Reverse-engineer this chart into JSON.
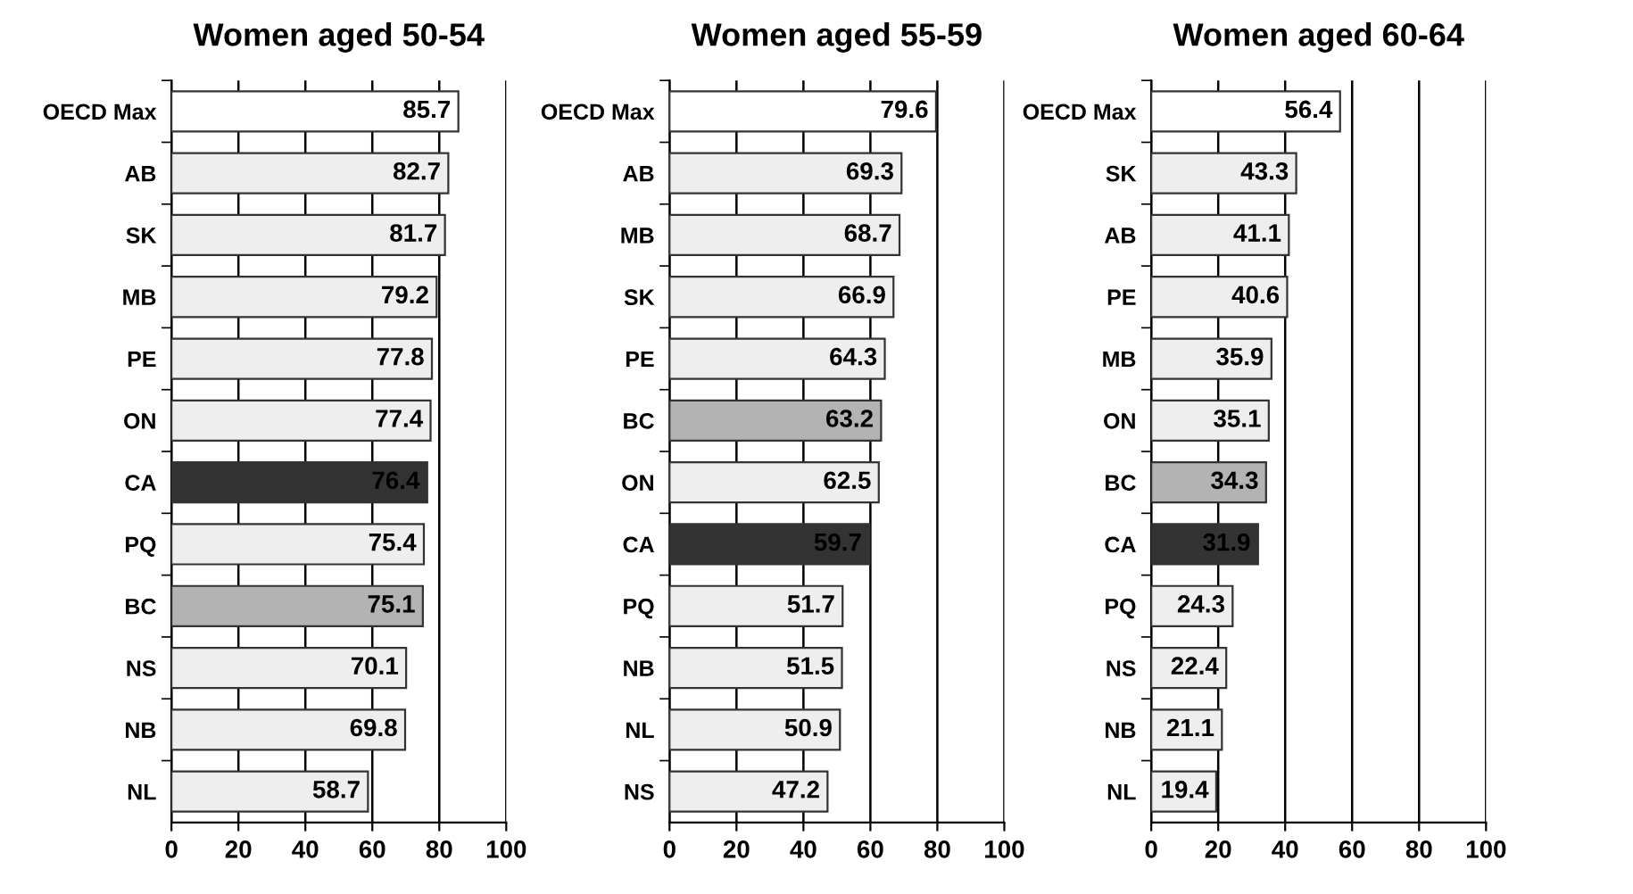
{
  "chart_data": [
    {
      "type": "bar",
      "orientation": "horizontal",
      "title": "Women aged 50-54",
      "categories": [
        "OECD Max",
        "AB",
        "SK",
        "MB",
        "PE",
        "ON",
        "CA",
        "PQ",
        "BC",
        "NS",
        "NB",
        "NL"
      ],
      "values": [
        85.7,
        82.7,
        81.7,
        79.2,
        77.8,
        77.4,
        76.4,
        75.4,
        75.1,
        70.1,
        69.8,
        58.7
      ],
      "colors": [
        "#ffffff",
        "#eeeeee",
        "#eeeeee",
        "#eeeeee",
        "#eeeeee",
        "#eeeeee",
        "#333333",
        "#eeeeee",
        "#b3b3b3",
        "#eeeeee",
        "#eeeeee",
        "#eeeeee"
      ],
      "xlim": [
        0,
        100
      ],
      "xticks": [
        0,
        20,
        40,
        60,
        80,
        100
      ],
      "grid": "x",
      "data_labels": true
    },
    {
      "type": "bar",
      "orientation": "horizontal",
      "title": "Women aged 55-59",
      "categories": [
        "OECD Max",
        "AB",
        "MB",
        "SK",
        "PE",
        "BC",
        "ON",
        "CA",
        "PQ",
        "NB",
        "NL",
        "NS"
      ],
      "values": [
        79.6,
        69.3,
        68.7,
        66.9,
        64.3,
        63.2,
        62.5,
        59.7,
        51.7,
        51.5,
        50.9,
        47.2
      ],
      "colors": [
        "#ffffff",
        "#eeeeee",
        "#eeeeee",
        "#eeeeee",
        "#eeeeee",
        "#b3b3b3",
        "#eeeeee",
        "#333333",
        "#eeeeee",
        "#eeeeee",
        "#eeeeee",
        "#eeeeee"
      ],
      "xlim": [
        0,
        100
      ],
      "xticks": [
        0,
        20,
        40,
        60,
        80,
        100
      ],
      "grid": "x",
      "data_labels": true
    },
    {
      "type": "bar",
      "orientation": "horizontal",
      "title": "Women aged 60-64",
      "categories": [
        "OECD Max",
        "SK",
        "AB",
        "PE",
        "MB",
        "ON",
        "BC",
        "CA",
        "PQ",
        "NS",
        "NB",
        "NL"
      ],
      "values": [
        56.4,
        43.3,
        41.1,
        40.6,
        35.9,
        35.1,
        34.3,
        31.9,
        24.3,
        22.4,
        21.1,
        19.4
      ],
      "colors": [
        "#ffffff",
        "#eeeeee",
        "#eeeeee",
        "#eeeeee",
        "#eeeeee",
        "#eeeeee",
        "#b3b3b3",
        "#333333",
        "#eeeeee",
        "#eeeeee",
        "#eeeeee",
        "#eeeeee"
      ],
      "xlim": [
        0,
        100
      ],
      "xticks": [
        0,
        20,
        40,
        60,
        80,
        100
      ],
      "grid": "x",
      "data_labels": true
    }
  ]
}
